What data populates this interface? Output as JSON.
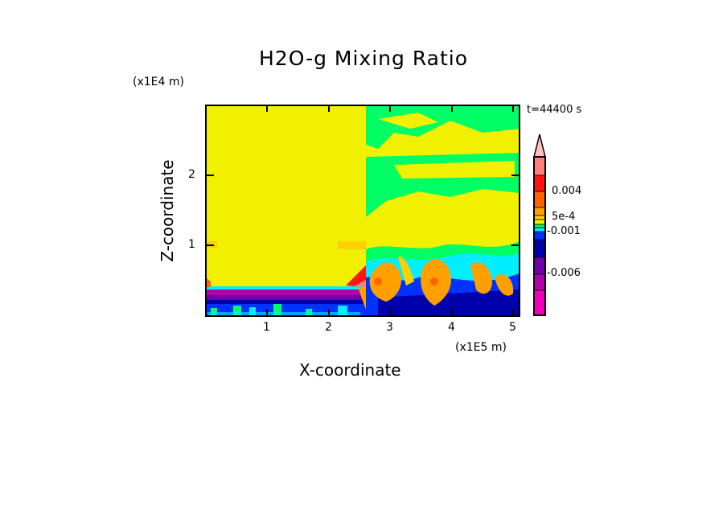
{
  "chart_data": {
    "type": "heatmap",
    "title": "H2O-g Mixing Ratio",
    "xlabel": "X-coordinate",
    "ylabel": "Z-coordinate",
    "x_unit": "(x1E5 m)",
    "y_unit": "(x1E4 m)",
    "time_label": "t=44400 s",
    "xlim": [
      0,
      5.1
    ],
    "ylim": [
      0,
      3
    ],
    "x_ticks": [
      "1",
      "2",
      "3",
      "4",
      "5"
    ],
    "y_ticks": [
      "1",
      "2"
    ],
    "colorbar": {
      "labels": [
        "0.004",
        "5e-4",
        "-0.001",
        "-0.006"
      ],
      "colors": [
        "#ffc0c0",
        "#ff7f7f",
        "#ff1414",
        "#ff6400",
        "#ffa000",
        "#ffd000",
        "#f0f000",
        "#00ff64",
        "#00eeff",
        "#0032ff",
        "#0000aa",
        "#7000aa",
        "#b000aa",
        "#f000b4"
      ]
    }
  }
}
